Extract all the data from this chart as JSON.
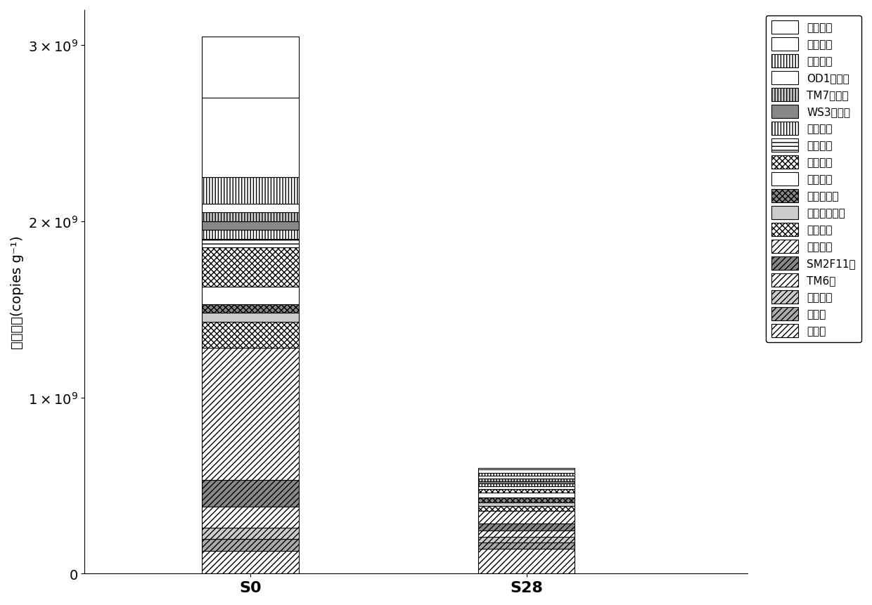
{
  "categories": [
    "S0",
    "S28"
  ],
  "ylabel": "绍对丰度(copies g⁻¹)",
  "ylim": [
    0,
    3200000000.0
  ],
  "yticks": [
    0,
    1000000000.0,
    2000000000.0,
    3000000000.0
  ],
  "bar_width": 0.35,
  "figsize": [
    12.4,
    8.62
  ],
  "dpi": 100,
  "segments": [
    {
      "label": "未分类",
      "hatch": "////",
      "facecolor": "white",
      "edgecolor": "black",
      "values": [
        130000000.0,
        140000000.0
      ]
    },
    {
      "label": "少数门",
      "hatch": "////",
      "facecolor": "#aaaaaa",
      "edgecolor": "black",
      "values": [
        65000000.0,
        35000000.0
      ]
    },
    {
      "label": "疣微菌门",
      "hatch": "////",
      "facecolor": "#cccccc",
      "edgecolor": "black",
      "values": [
        65000000.0,
        35000000.0
      ]
    },
    {
      "label": "TM6门",
      "hatch": "////",
      "facecolor": "white",
      "edgecolor": "black",
      "values": [
        120000000.0,
        35000000.0
      ]
    },
    {
      "label": "SM2F11门",
      "hatch": "////",
      "facecolor": "#888888",
      "edgecolor": "black",
      "values": [
        150000000.0,
        40000000.0
      ]
    },
    {
      "label": "变形菌门",
      "hatch": "////",
      "facecolor": "white",
      "edgecolor": "black",
      "values": [
        750000000.0,
        70000000.0
      ]
    },
    {
      "label": "浮霍菌门",
      "hatch": "xxxx",
      "facecolor": "white",
      "edgecolor": "black",
      "values": [
        150000000.0,
        30000000.0
      ]
    },
    {
      "label": "祀化螺旋菌门",
      "hatch": "====",
      "facecolor": "#cccccc",
      "edgecolor": "black",
      "values": [
        50000000.0,
        20000000.0
      ]
    },
    {
      "label": "芽单胞菌门",
      "hatch": "xxxx",
      "facecolor": "#888888",
      "edgecolor": "black",
      "values": [
        50000000.0,
        25000000.0
      ]
    },
    {
      "label": "厉壁菌门",
      "hatch": "====",
      "facecolor": "white",
      "edgecolor": "black",
      "values": [
        100000000.0,
        30000000.0
      ]
    },
    {
      "label": "蓝细菌门",
      "hatch": "xxxx",
      "facecolor": "white",
      "edgecolor": "black",
      "values": [
        220000000.0,
        20000000.0
      ]
    },
    {
      "label": "绿弯菌门",
      "hatch": "---",
      "facecolor": "white",
      "edgecolor": "black",
      "values": [
        50000000.0,
        15000000.0
      ]
    },
    {
      "label": "衣原体门",
      "hatch": "||||",
      "facecolor": "white",
      "edgecolor": "black",
      "values": [
        50000000.0,
        15000000.0
      ]
    },
    {
      "label": "WS3候选门",
      "hatch": "####",
      "facecolor": "#888888",
      "edgecolor": "black",
      "values": [
        50000000.0,
        15000000.0
      ]
    },
    {
      "label": "TM7候选门",
      "hatch": "||||",
      "facecolor": "#cccccc",
      "edgecolor": "black",
      "values": [
        50000000.0,
        15000000.0
      ]
    },
    {
      "label": "OD1候选门",
      "hatch": "####",
      "facecolor": "white",
      "edgecolor": "black",
      "values": [
        50000000.0,
        15000000.0
      ]
    },
    {
      "label": "拟杆菌门",
      "hatch": "||||",
      "facecolor": "white",
      "edgecolor": "black",
      "values": [
        150000000.0,
        15000000.0
      ]
    },
    {
      "label": "放线菌门",
      "hatch": "####",
      "facecolor": "white",
      "edgecolor": "black",
      "values": [
        450000000.0,
        20000000.0
      ]
    },
    {
      "label": "酸杆菌门",
      "hatch": "",
      "facecolor": "white",
      "edgecolor": "black",
      "values": [
        350000000.0,
        10000000.0
      ]
    }
  ]
}
